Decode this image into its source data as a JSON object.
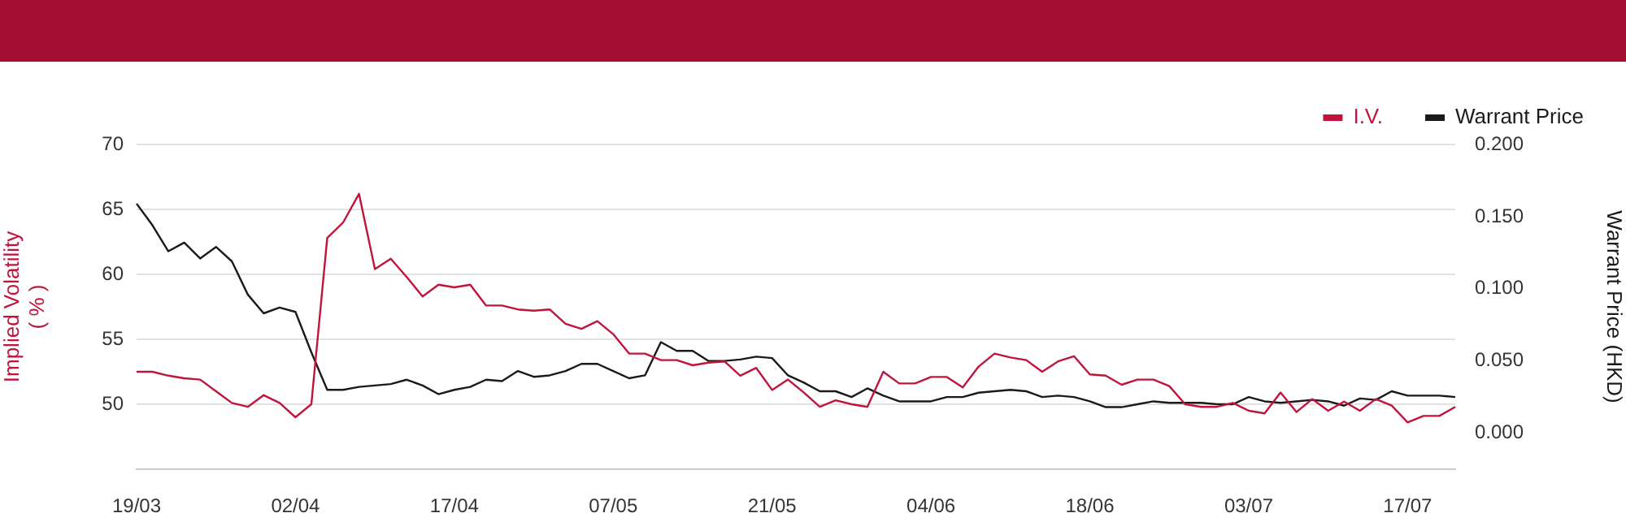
{
  "chart_data": {
    "type": "line",
    "ylabel": "Implied Volatility\n( % )",
    "y2label": "Warrant Price (HKD)",
    "legend": "top right",
    "grid": "y",
    "marker": "none",
    "categories": [
      "19/03",
      null,
      null,
      null,
      null,
      null,
      null,
      null,
      null,
      null,
      "02/04",
      null,
      null,
      null,
      null,
      null,
      null,
      null,
      null,
      null,
      "17/04",
      null,
      null,
      null,
      null,
      null,
      null,
      null,
      null,
      null,
      "07/05",
      null,
      null,
      null,
      null,
      null,
      null,
      null,
      null,
      null,
      "21/05",
      null,
      null,
      null,
      null,
      null,
      null,
      null,
      null,
      null,
      "04/06",
      null,
      null,
      null,
      null,
      null,
      null,
      null,
      null,
      null,
      "18/06",
      null,
      null,
      null,
      null,
      null,
      null,
      null,
      null,
      null,
      "03/07",
      null,
      null,
      null,
      null,
      null,
      null,
      null,
      null,
      null,
      "17/07",
      null,
      null,
      null
    ],
    "ylim": [
      45,
      70
    ],
    "yticks": [
      50,
      55,
      60,
      65,
      70
    ],
    "y2lim": [
      -0.025,
      0.2
    ],
    "y2ticks": [
      {
        "value": 0,
        "label": "0.000"
      },
      {
        "value": 0.05,
        "label": "0.050"
      },
      {
        "value": 0.1,
        "label": "0.100"
      },
      {
        "value": 0.15,
        "label": "0.150"
      },
      {
        "value": 0.2,
        "label": "0.200"
      }
    ],
    "series": [
      {
        "name": "I.V.",
        "color": "#c0143c",
        "values": [
          52.5,
          52.5,
          52.2,
          52.0,
          51.9,
          51.0,
          50.1,
          49.8,
          50.7,
          50.1,
          49.0,
          50.0,
          62.8,
          64.0,
          66.2,
          60.4,
          61.2,
          59.8,
          58.3,
          59.2,
          59.0,
          59.2,
          57.6,
          57.6,
          57.3,
          57.2,
          57.3,
          56.2,
          55.8,
          56.4,
          55.4,
          53.9,
          53.9,
          53.4,
          53.4,
          53.0,
          53.2,
          53.3,
          52.2,
          52.8,
          51.1,
          51.9,
          50.9,
          49.8,
          50.3,
          50.0,
          49.8,
          52.5,
          51.6,
          51.6,
          52.1,
          52.1,
          51.3,
          52.9,
          53.9,
          53.6,
          53.4,
          52.5,
          53.3,
          53.7,
          52.3,
          52.2,
          51.5,
          51.9,
          51.9,
          51.4,
          50.0,
          49.8,
          49.8,
          50.1,
          49.5,
          49.3,
          50.9,
          49.4,
          50.4,
          49.5,
          50.2,
          49.5,
          50.4,
          49.9,
          48.6,
          49.1,
          49.1,
          49.8
        ]
      },
      {
        "name": "Warrant Price",
        "color": "#1a1a1a",
        "axis": "y2",
        "values": [
          0.159,
          0.144,
          0.126,
          0.132,
          0.121,
          0.129,
          0.119,
          0.096,
          0.083,
          0.087,
          0.084,
          0.056,
          0.03,
          0.03,
          0.032,
          0.033,
          0.034,
          0.037,
          0.033,
          0.027,
          0.03,
          0.032,
          0.037,
          0.036,
          0.043,
          0.039,
          0.04,
          0.043,
          0.048,
          0.048,
          0.043,
          0.038,
          0.04,
          0.063,
          0.057,
          0.057,
          0.05,
          0.05,
          0.051,
          0.053,
          0.052,
          0.04,
          0.035,
          0.029,
          0.029,
          0.025,
          0.031,
          0.026,
          0.022,
          0.022,
          0.022,
          0.025,
          0.025,
          0.028,
          0.029,
          0.03,
          0.029,
          0.025,
          0.026,
          0.025,
          0.022,
          0.018,
          0.018,
          0.02,
          0.022,
          0.021,
          0.021,
          0.021,
          0.02,
          0.02,
          0.025,
          0.022,
          0.021,
          0.022,
          0.023,
          0.022,
          0.019,
          0.024,
          0.023,
          0.029,
          0.026,
          0.026,
          0.026,
          0.025
        ]
      }
    ]
  }
}
